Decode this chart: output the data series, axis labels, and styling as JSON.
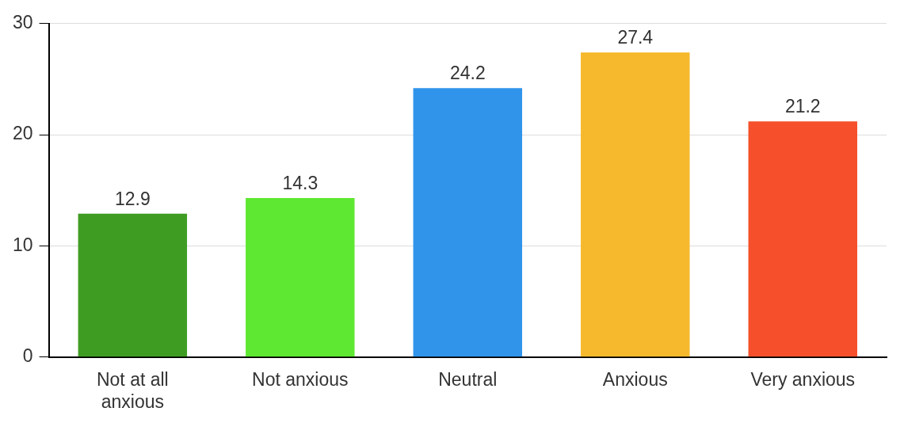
{
  "chart_data": {
    "type": "bar",
    "categories": [
      "Not at all anxious",
      "Not anxious",
      "Neutral",
      "Anxious",
      "Very anxious"
    ],
    "values": [
      12.9,
      14.3,
      24.2,
      27.4,
      21.2
    ],
    "colors": [
      "#3f9c23",
      "#5ee831",
      "#3094ea",
      "#f6b92d",
      "#f5502b"
    ],
    "ylim": [
      0,
      30
    ],
    "yticks": [
      0,
      10,
      20,
      30
    ],
    "grid": "y",
    "data_labels": true,
    "legend": false
  }
}
